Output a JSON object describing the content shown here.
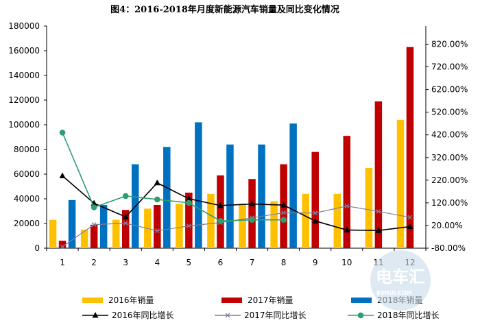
{
  "chart_data": {
    "type": "bar",
    "title": "图4：2016-2018年月度新能源汽车销量及同比变化情况",
    "categories": [
      "1",
      "2",
      "3",
      "4",
      "5",
      "6",
      "7",
      "8",
      "9",
      "10",
      "11",
      "12"
    ],
    "bar_series": [
      {
        "name": "2016年销量",
        "color": "#ffc000",
        "values": [
          23000,
          15000,
          23000,
          32000,
          36000,
          44000,
          36000,
          38000,
          44000,
          44000,
          65000,
          104000
        ]
      },
      {
        "name": "2017年销量",
        "color": "#c00000",
        "values": [
          6000,
          19000,
          31000,
          35000,
          45000,
          59000,
          56000,
          68000,
          78000,
          91000,
          119000,
          163000
        ]
      },
      {
        "name": "2018年销量",
        "color": "#0070c0",
        "values": [
          39000,
          35000,
          68000,
          82000,
          102000,
          84000,
          84000,
          101000,
          null,
          null,
          null,
          null
        ]
      }
    ],
    "line_series": [
      {
        "name": "2016年同比增长",
        "color": "#000000",
        "marker": "triangle",
        "values": [
          239,
          118,
          58,
          208,
          138,
          108,
          115,
          110,
          40,
          0,
          -2,
          15
        ]
      },
      {
        "name": "2017年同比增长",
        "color": "#7f7f9f",
        "marker": "x",
        "values": [
          -74,
          24,
          30,
          -3,
          18,
          33,
          54,
          76,
          75,
          106,
          82,
          56
        ]
      },
      {
        "name": "2018年同比增长",
        "color": "#2e9e6e",
        "marker": "circle",
        "values": [
          430,
          100,
          150,
          135,
          120,
          40,
          45,
          45,
          null,
          null,
          null,
          null
        ]
      }
    ],
    "y_left": {
      "min": 0,
      "max": 180000,
      "step": 20000,
      "ticks": [
        "0",
        "20000",
        "40000",
        "60000",
        "80000",
        "100000",
        "120000",
        "140000",
        "160000",
        "180000"
      ]
    },
    "y_right": {
      "min": -80,
      "max": 900,
      "step": 100,
      "ticks": [
        "-80.00%",
        "20.00%",
        "120.00%",
        "220.00%",
        "320.00%",
        "420.00%",
        "520.00%",
        "620.00%",
        "720.00%",
        "820.00%"
      ]
    },
    "xlabel": "",
    "ylabel": "",
    "legend": {
      "placement": "bottom",
      "entries": [
        "2016年销量",
        "2017年销量",
        "2018年销量",
        "2016年同比增长",
        "2017年同比增长",
        "2018年同比增长"
      ]
    }
  },
  "watermark": {
    "text": "电车汇",
    "subtext": "EVHUI.COM"
  }
}
